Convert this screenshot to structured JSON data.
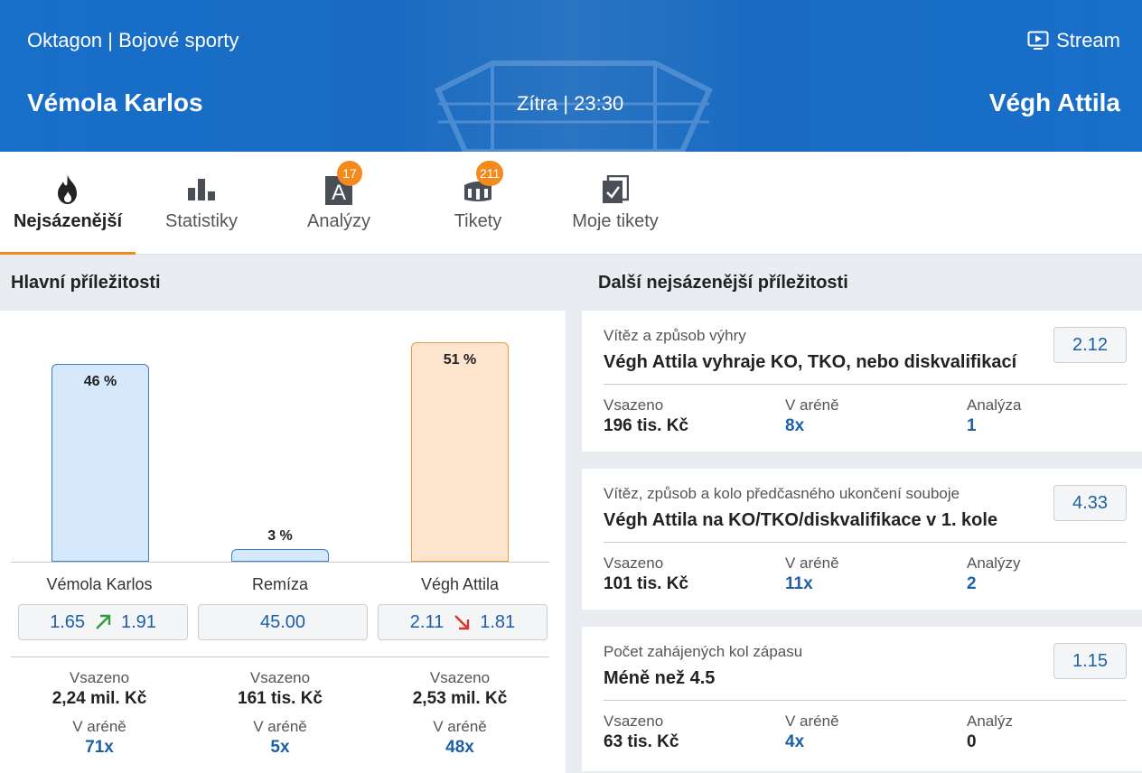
{
  "header": {
    "sport": "Oktagon | Bojové sporty",
    "stream_label": "Stream",
    "home": "Vémola Karlos",
    "time": "Zítra | 23:30",
    "away": "Végh Attila"
  },
  "tabs": [
    {
      "label": "Nejsázenější",
      "icon": "flame-icon",
      "active": true
    },
    {
      "label": "Statistiky",
      "icon": "bar-chart-icon"
    },
    {
      "label": "Analýzy",
      "icon": "analysis-icon",
      "badge": "17"
    },
    {
      "label": "Tikety",
      "icon": "stadium-icon",
      "badge": "211"
    },
    {
      "label": "Moje tikety",
      "icon": "ticket-check-icon"
    }
  ],
  "main": {
    "title": "Hlavní příležitosti",
    "outcomes": [
      {
        "name": "Vémola Karlos",
        "percent": 46,
        "percent_label": "46 %",
        "odd_old": "1.65",
        "odd_new": "1.91",
        "trend": "up",
        "staked_label": "Vsazeno",
        "staked": "2,24 mil. Kč",
        "arena_label": "V aréně",
        "arena": "71x"
      },
      {
        "name": "Remíza",
        "percent": 3,
        "percent_label": "3 %",
        "odd": "45.00",
        "staked_label": "Vsazeno",
        "staked": "161 tis. Kč",
        "arena_label": "V aréně",
        "arena": "5x"
      },
      {
        "name": "Végh Attila",
        "percent": 51,
        "percent_label": "51 %",
        "odd_old": "2.11",
        "odd_new": "1.81",
        "trend": "down",
        "staked_label": "Vsazeno",
        "staked": "2,53 mil. Kč",
        "arena_label": "V aréně",
        "arena": "48x"
      }
    ]
  },
  "more": {
    "title": "Další nejsázenější příležitosti",
    "cards": [
      {
        "market": "Vítěz a způsob výhry",
        "selection": "Végh Attila vyhraje KO, TKO, nebo diskvalifikací",
        "odd": "2.12",
        "staked_label": "Vsazeno",
        "staked": "196 tis. Kč",
        "arena_label": "V aréně",
        "arena": "8x",
        "analysis_label": "Analýza",
        "analysis": "1"
      },
      {
        "market": "Vítěz, způsob a kolo předčasného ukončení souboje",
        "selection": "Végh Attila na KO/TKO/diskvalifikace v 1. kole",
        "odd": "4.33",
        "staked_label": "Vsazeno",
        "staked": "101 tis. Kč",
        "arena_label": "V aréně",
        "arena": "11x",
        "analysis_label": "Analýzy",
        "analysis": "2"
      },
      {
        "market": "Počet zahájených kol zápasu",
        "selection": "Méně než 4.5",
        "odd": "1.15",
        "staked_label": "Vsazeno",
        "staked": "63 tis. Kč",
        "arena_label": "V aréně",
        "arena": "4x",
        "analysis_label": "Analýz",
        "analysis": "0"
      }
    ]
  },
  "colors": {
    "header_blue": "#176fc9",
    "accent_orange": "#f28a1d",
    "link_blue": "#1d5fa8",
    "bar_blue": "#d6e8fb",
    "bar_orange": "#fde4cc",
    "trend_up": "#2e9b3e",
    "trend_down": "#d9322b"
  }
}
